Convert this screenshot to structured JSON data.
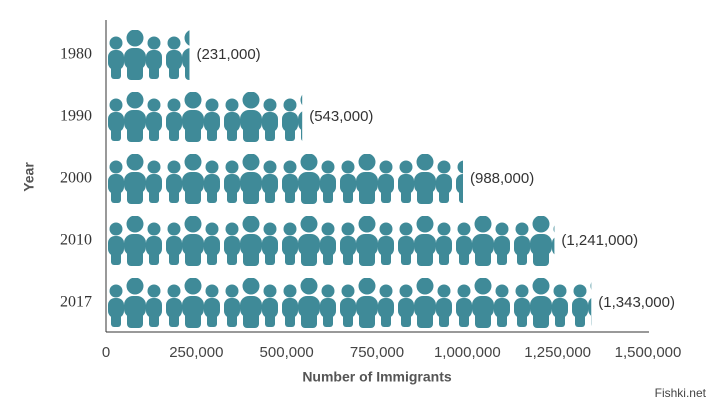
{
  "chart_data": {
    "type": "pictograph-bar",
    "x_label": "Number of Immigrants",
    "y_label": "Year",
    "categories": [
      "1980",
      "1990",
      "2000",
      "2010",
      "2017"
    ],
    "values": [
      231000,
      543000,
      988000,
      1241000,
      1343000
    ],
    "value_labels": [
      "(231,000)",
      "(543,000)",
      "(988,000)",
      "(1,241,000)",
      "(1,343,000)"
    ],
    "color": "#3f8a98",
    "xlim": [
      0,
      1500000
    ],
    "xticks": [
      0,
      {
        "value": 250000,
        "label": "250,000"
      },
      {
        "value": 500000,
        "label": "500,000"
      },
      {
        "value": 750000,
        "label": "750,000"
      },
      {
        "value": 1000000,
        "label": "1,000,000"
      },
      {
        "value": 1250000,
        "label": "1,250,000"
      },
      {
        "value": 1500000,
        "label": "1,500,000"
      }
    ],
    "watermark": "Fishki.net"
  }
}
